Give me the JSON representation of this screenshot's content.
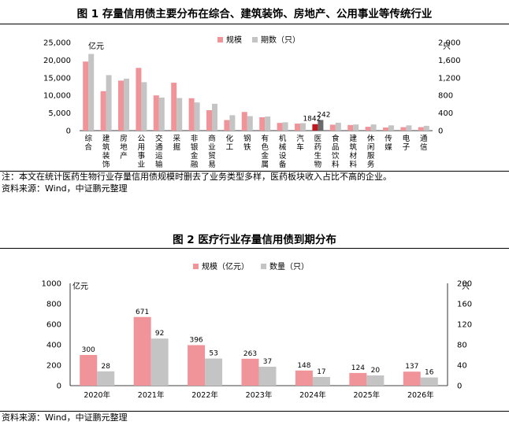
{
  "figure1": {
    "title": "图 1   存量信用债主要分布在综合、建筑装饰、房地产、公用事业等传统行业",
    "note": "注：本文在统计医药生物行业存量信用债规模时删去了业务类型多样，医药板块收入占比不高的企业。",
    "source": "资料来源：Wind，中证鹏元整理"
  },
  "figure2": {
    "title": "图 2   医疗行业存量信用债到期分布",
    "source": "资料来源：Wind，中证鹏元整理"
  },
  "chart_data": [
    {
      "type": "bar",
      "left_unit": "亿元",
      "right_unit": "只",
      "categories": [
        "综合",
        "建筑装饰",
        "房地产",
        "公用事业",
        "交通运输",
        "采掘",
        "非银金融",
        "商业贸易",
        "化工",
        "钢铁",
        "有色金属",
        "机械设备",
        "汽车",
        "医药生物",
        "食品饮料",
        "建筑材料",
        "休闲服务",
        "传媒",
        "电子",
        "通信"
      ],
      "series": [
        {
          "name": "规模",
          "axis": "left",
          "color": "#f0949a",
          "values": [
            19600,
            11200,
            14200,
            17800,
            10000,
            13600,
            9200,
            5800,
            3000,
            5300,
            3800,
            2200,
            2000,
            1842,
            1700,
            1600,
            1100,
            900,
            1000,
            1000
          ]
        },
        {
          "name": "期数（只）",
          "axis": "right",
          "color": "#c4c4c4",
          "values": [
            1740,
            1260,
            1180,
            1100,
            750,
            740,
            640,
            610,
            350,
            330,
            320,
            190,
            170,
            242,
            180,
            140,
            140,
            120,
            120,
            110
          ]
        }
      ],
      "highlight": {
        "index": 13,
        "colors": [
          "#c0161d",
          "#6a6a6a"
        ],
        "labels": [
          "1842",
          "242"
        ]
      },
      "ylim_left": [
        0,
        25000
      ],
      "yticks_left": [
        "0",
        "5,000",
        "10,000",
        "15,000",
        "20,000",
        "25,000"
      ],
      "ylim_right": [
        0,
        2000
      ],
      "yticks_right": [
        "0",
        "400",
        "800",
        "1,200",
        "1,600",
        "2,000"
      ],
      "legend": "top"
    },
    {
      "type": "bar",
      "left_unit": "亿元",
      "right_unit": "只",
      "categories": [
        "2020年",
        "2021年",
        "2022年",
        "2023年",
        "2024年",
        "2025年",
        "2026年"
      ],
      "series": [
        {
          "name": "规模（亿元）",
          "axis": "left",
          "color": "#f0949a",
          "values": [
            300,
            671,
            396,
            263,
            148,
            124,
            137
          ]
        },
        {
          "name": "数量（只）",
          "axis": "right",
          "color": "#c4c4c4",
          "values": [
            28,
            92,
            53,
            37,
            17,
            20,
            16
          ]
        }
      ],
      "ylim_left": [
        0,
        1000
      ],
      "yticks_left": [
        "0",
        "200",
        "400",
        "600",
        "800",
        "1000"
      ],
      "ylim_right": [
        0,
        200
      ],
      "yticks_right": [
        "0",
        "40",
        "80",
        "120",
        "160",
        "200"
      ],
      "legend": "top"
    }
  ]
}
